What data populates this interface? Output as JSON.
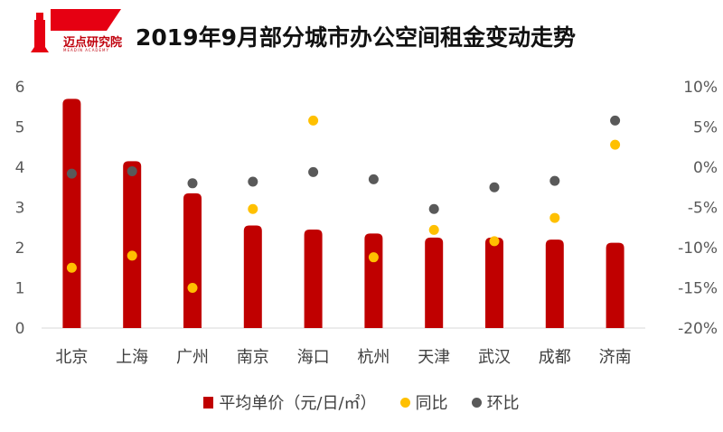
{
  "logo": {
    "text": "迈点研究院",
    "sub": "MEADIN ACADEMY"
  },
  "colors": {
    "bar": "#c00000",
    "yoy": "#ffc000",
    "mom": "#595959",
    "axis": "#d9d9d9"
  },
  "chart_data": {
    "type": "bar",
    "title": "2019年9月部分城市办公空间租金变动走势",
    "categories": [
      "北京",
      "上海",
      "广州",
      "南京",
      "海口",
      "杭州",
      "天津",
      "武汉",
      "成都",
      "济南"
    ],
    "y_left": {
      "range": [
        0,
        6
      ],
      "ticks": [
        "0",
        "1",
        "2",
        "3",
        "4",
        "5",
        "6"
      ]
    },
    "y_right": {
      "range": [
        -20,
        10
      ],
      "ticks": [
        "-20%",
        "-15%",
        "-10%",
        "-5%",
        "0%",
        "5%",
        "10%"
      ]
    },
    "series": [
      {
        "name": "平均单价（元/日/㎡）",
        "type": "bar",
        "axis": "left",
        "values": [
          5.7,
          4.15,
          3.35,
          2.55,
          2.45,
          2.35,
          2.25,
          2.25,
          2.2,
          2.12
        ]
      },
      {
        "name": "同比",
        "type": "scatter",
        "axis": "right",
        "values": [
          -12.5,
          -11,
          -15,
          -5.2,
          5.8,
          -11.2,
          -7.8,
          -9.2,
          -6.3,
          2.8
        ]
      },
      {
        "name": "环比",
        "type": "scatter",
        "axis": "right",
        "values": [
          -0.8,
          -0.5,
          -2,
          -1.8,
          -0.6,
          -1.5,
          -5.2,
          -2.5,
          -1.7,
          5.8
        ]
      }
    ],
    "legend_position": "bottom",
    "grid": false
  }
}
